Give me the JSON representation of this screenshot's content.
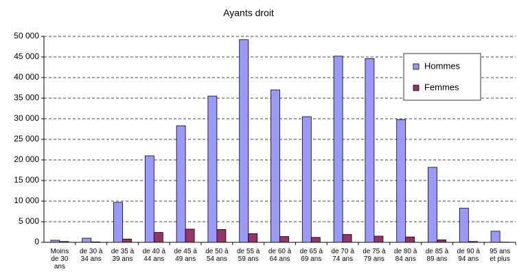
{
  "chart_data": {
    "type": "bar",
    "title": "Ayants droit",
    "categories": [
      "Moins de 30 ans",
      "de 30 à 34 ans",
      "de 35 à 39 ans",
      "de 40 à 44 ans",
      "de 45 à 49 ans",
      "de 50 à 54 ans",
      "de 55 à 59 ans",
      "de 60 à 64 ans",
      "de 65 à 69 ans",
      "de 70 à 74 ans",
      "de 75 à 79 ans",
      "de 80 à 84 ans",
      "de 85 à 89 ans",
      "de 90 à 94 ans",
      "95 ans et plus"
    ],
    "series": [
      {
        "name": "Hommes",
        "color": "#9999ff",
        "values": [
          500,
          1000,
          9700,
          21000,
          28300,
          35500,
          49200,
          37000,
          30500,
          45200,
          44600,
          29800,
          18200,
          8300,
          2700
        ]
      },
      {
        "name": "Femmes",
        "color": "#993366",
        "values": [
          200,
          100,
          800,
          2400,
          3200,
          3100,
          2100,
          1400,
          1200,
          1900,
          1500,
          1300,
          600,
          200,
          50
        ]
      }
    ],
    "ylim": [
      0,
      50000
    ],
    "yticks": [
      0,
      {
        "value": 5000,
        "label": "5 000"
      },
      {
        "value": 10000,
        "label": "10 000"
      },
      {
        "value": 15000,
        "label": "15 000"
      },
      {
        "value": 20000,
        "label": "20 000"
      },
      {
        "value": 25000,
        "label": "25 000"
      },
      {
        "value": 30000,
        "label": "30 000"
      },
      {
        "value": 35000,
        "label": "35 000"
      },
      {
        "value": 40000,
        "label": "40 000"
      },
      {
        "value": 45000,
        "label": "45 000"
      },
      {
        "value": 50000,
        "label": "50 000"
      }
    ],
    "grid": true,
    "legend": "upper right"
  }
}
